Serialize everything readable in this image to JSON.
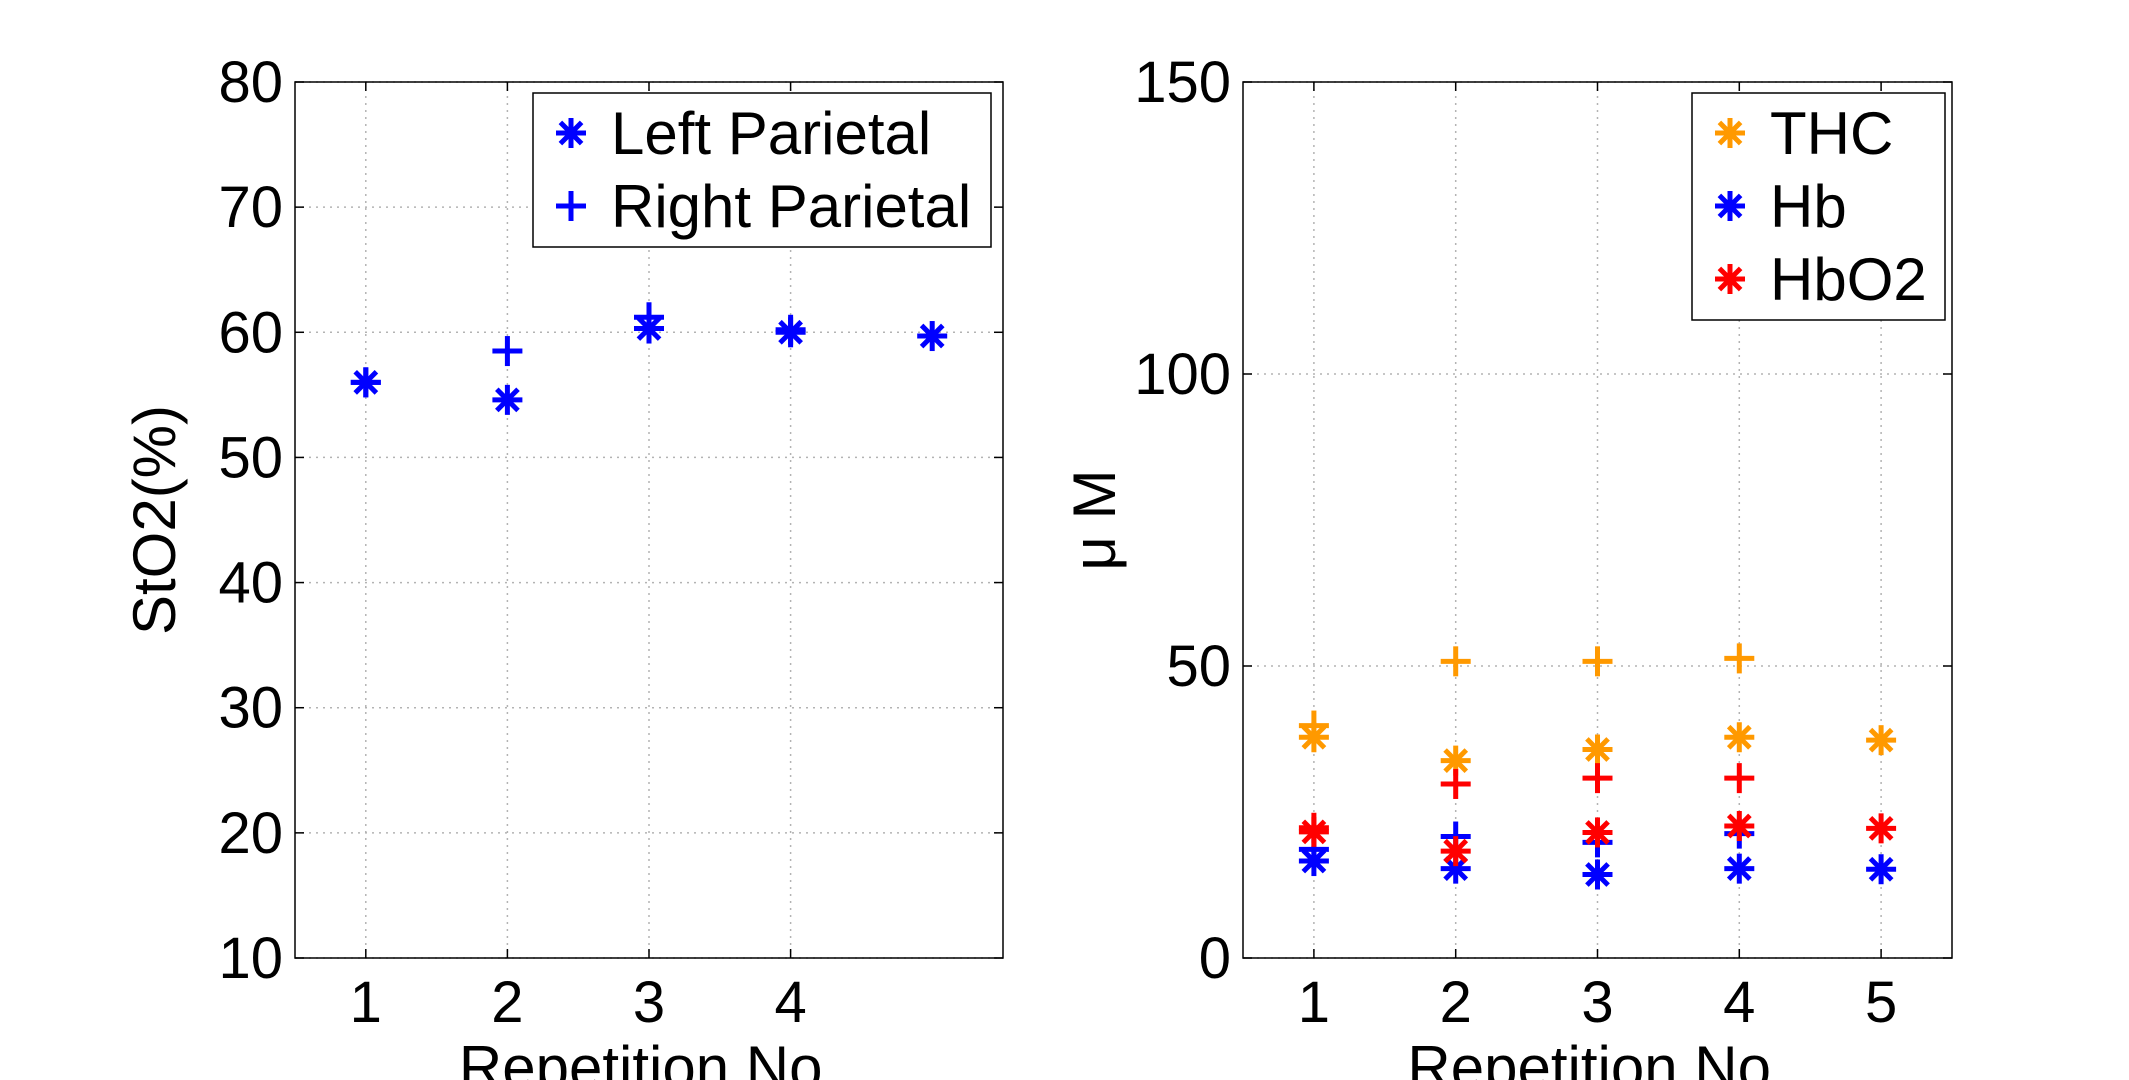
{
  "chart_data": [
    {
      "type": "scatter",
      "title": "",
      "xlabel": "Repetition No.",
      "ylabel": "StO2(%)",
      "xlim": [
        0.5,
        5.5
      ],
      "ylim": [
        10,
        80
      ],
      "xticks": [
        1,
        2,
        3,
        4
      ],
      "xtick_labels": [
        "1",
        "2",
        "3",
        "4"
      ],
      "yticks": [
        10,
        20,
        30,
        40,
        50,
        60,
        70,
        80
      ],
      "ytick_labels": [
        "10",
        "20",
        "30",
        "40",
        "50",
        "60",
        "70",
        "80"
      ],
      "grid": true,
      "legend_position": "top-right",
      "series": [
        {
          "name": "Left Parietal",
          "marker": "asterisk",
          "color": "#0000ff",
          "x": [
            1,
            2,
            3,
            4,
            5
          ],
          "y": [
            56,
            54.6,
            60.3,
            60,
            59.7
          ]
        },
        {
          "name": "Right Parietal",
          "marker": "plus",
          "color": "#0000ff",
          "x": [
            1,
            2,
            3,
            4
          ],
          "y": [
            56,
            58.5,
            61.2,
            60.2
          ]
        }
      ]
    },
    {
      "type": "scatter",
      "title": "",
      "xlabel": "Repetition No.",
      "ylabel": "μ M",
      "xlim": [
        0.5,
        5.5
      ],
      "ylim": [
        0,
        150
      ],
      "xticks": [
        1,
        2,
        3,
        4,
        5
      ],
      "xtick_labels": [
        "1",
        "2",
        "3",
        "4",
        "5"
      ],
      "yticks": [
        0,
        50,
        100,
        150
      ],
      "ytick_labels": [
        "0",
        "50",
        "100",
        "150"
      ],
      "grid": true,
      "legend_position": "top-right",
      "legend": [
        {
          "name": "THC",
          "color": "#ff9900"
        },
        {
          "name": "Hb",
          "color": "#0000ff"
        },
        {
          "name": "HbO2",
          "color": "#ff0000"
        }
      ],
      "series": [
        {
          "color": "#ff9900",
          "marker": "asterisk",
          "x": [
            1,
            2,
            3,
            4,
            5
          ],
          "y": [
            37.8,
            33.8,
            35.7,
            37.8,
            37.3
          ]
        },
        {
          "color": "#ff9900",
          "marker": "plus",
          "x": [
            1,
            2,
            3,
            4
          ],
          "y": [
            39.8,
            50.8,
            50.8,
            51.3
          ]
        },
        {
          "color": "#0000ff",
          "marker": "asterisk",
          "x": [
            1,
            2,
            3,
            4,
            5
          ],
          "y": [
            16.6,
            15.3,
            14.3,
            15.3,
            15.2
          ]
        },
        {
          "color": "#0000ff",
          "marker": "plus",
          "x": [
            1,
            2,
            3,
            4
          ],
          "y": [
            18.6,
            20.8,
            19.8,
            21.3
          ]
        },
        {
          "color": "#ff0000",
          "marker": "asterisk",
          "x": [
            1,
            2,
            3,
            4,
            5
          ],
          "y": [
            21.6,
            18.3,
            21.5,
            22.6,
            22.2
          ]
        },
        {
          "color": "#ff0000",
          "marker": "plus",
          "x": [
            1,
            2,
            3,
            4
          ],
          "y": [
            22.3,
            29.8,
            30.8,
            30.8
          ]
        }
      ]
    }
  ]
}
